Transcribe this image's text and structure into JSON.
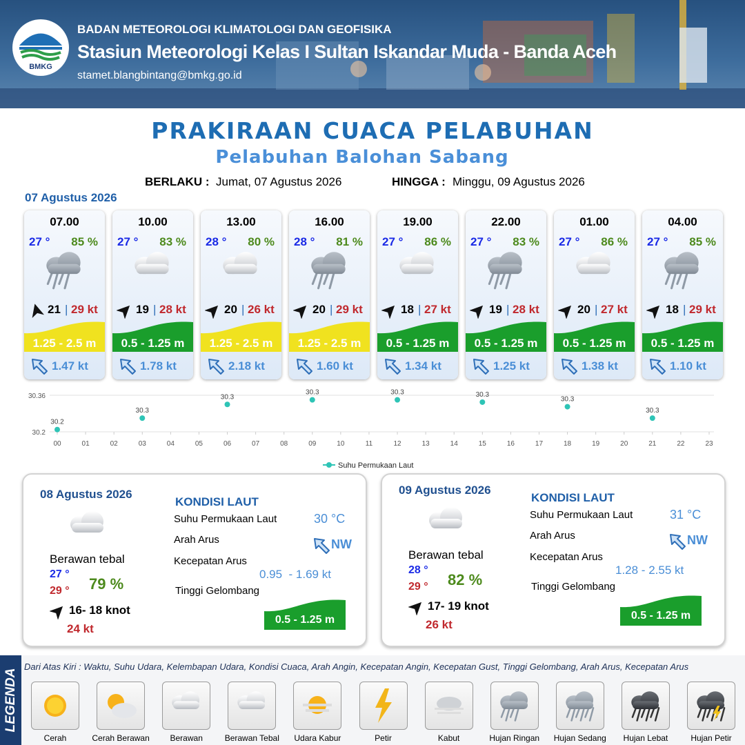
{
  "header": {
    "logo": "BMKG",
    "agency": "BADAN METEOROLOGI KLIMATOLOGI DAN GEOFISIKA",
    "station": "Stasiun Meteorologi Kelas I Sultan Iskandar Muda - Banda Aceh",
    "email": "stamet.blangbintang@bmkg.go.id"
  },
  "title": "PRAKIRAAN CUACA PELABUHAN",
  "subtitle": "Pelabuhan Balohan Sabang",
  "validity": {
    "from_label": "BERLAKU :",
    "from": "Jumat, 07 Agustus 2026",
    "to_label": "HINGGA :",
    "to": "Minggu, 09 Agustus 2026"
  },
  "forecast": {
    "date": "07 Agustus 2026",
    "cards": [
      {
        "time": "07.00",
        "temp": "27 °",
        "humidity": "85 %",
        "wind": "21",
        "gust": "29 kt",
        "wave": "1.25 - 2.5 m",
        "current": "1.47 kt"
      },
      {
        "time": "10.00",
        "temp": "27 °",
        "humidity": "83 %",
        "wind": "19",
        "gust": "28 kt",
        "wave": "0.5 - 1.25 m",
        "current": "1.78 kt"
      },
      {
        "time": "13.00",
        "temp": "28 °",
        "humidity": "80 %",
        "wind": "20",
        "gust": "26 kt",
        "wave": "1.25 - 2.5 m",
        "current": "2.18 kt"
      },
      {
        "time": "16.00",
        "temp": "28 °",
        "humidity": "81 %",
        "wind": "20",
        "gust": "29 kt",
        "wave": "1.25 - 2.5 m",
        "current": "1.60 kt"
      },
      {
        "time": "19.00",
        "temp": "27 °",
        "humidity": "86 %",
        "wind": "18",
        "gust": "27 kt",
        "wave": "0.5 - 1.25 m",
        "current": "1.34 kt"
      },
      {
        "time": "22.00",
        "temp": "27 °",
        "humidity": "83 %",
        "wind": "19",
        "gust": "28 kt",
        "wave": "0.5 - 1.25 m",
        "current": "1.25 kt"
      },
      {
        "time": "01.00",
        "temp": "27 °",
        "humidity": "86 %",
        "wind": "20",
        "gust": "27 kt",
        "wave": "0.5 - 1.25 m",
        "current": "1.38 kt"
      },
      {
        "time": "04.00",
        "temp": "27 °",
        "humidity": "85 %",
        "wind": "18",
        "gust": "29 kt",
        "wave": "0.5 - 1.25 m",
        "current": "1.10 kt"
      }
    ]
  },
  "chart_data": {
    "type": "scatter",
    "x": [
      0,
      3,
      6,
      9,
      12,
      15,
      18,
      21
    ],
    "series": [
      {
        "name": "Suhu Permukaan Laut",
        "color": "#2ec4b6",
        "values": [
          30.21,
          30.26,
          30.32,
          30.34,
          30.34,
          30.33,
          30.31,
          30.26
        ],
        "value_labels": [
          "30.2",
          "30.3",
          "30.3",
          "30.3",
          "30.3",
          "30.3",
          "30.3",
          "30.3"
        ]
      }
    ],
    "xlim": [
      0,
      23
    ],
    "xticks": [
      {
        "value": 0,
        "label": "00"
      },
      {
        "value": 1,
        "label": "01"
      },
      {
        "value": 2,
        "label": "02"
      },
      {
        "value": 3,
        "label": "03"
      },
      {
        "value": 4,
        "label": "04"
      },
      {
        "value": 5,
        "label": "05"
      },
      {
        "value": 6,
        "label": "06"
      },
      {
        "value": 7,
        "label": "07"
      },
      {
        "value": 8,
        "label": "08"
      },
      {
        "value": 9,
        "label": "09"
      },
      10,
      11,
      12,
      13,
      14,
      15,
      16,
      17,
      18,
      19,
      20,
      21,
      22,
      23
    ],
    "ylim": [
      30.2,
      30.36
    ],
    "yticks": [
      30.2,
      30.36
    ],
    "grid": true
  },
  "days": [
    {
      "date": "08 Agustus 2026",
      "condition": "Berawan tebal",
      "temp_min": "27 °",
      "temp_max": "29 °",
      "humidity": "79 %",
      "wind": "16- 18 knot",
      "gust": "24 kt",
      "sea_title": "KONDISI LAUT",
      "sst_label": "Suhu Permukaan Laut",
      "sst": "30 °C",
      "dir_label": "Arah Arus",
      "dir": "NW",
      "speed_label": "Kecepatan Arus",
      "speed": "0.95  - 1.69 kt",
      "wave_label": "Tinggi Gelombang",
      "wave": "0.5 - 1.25 m"
    },
    {
      "date": "09 Agustus 2026",
      "condition": "Berawan tebal",
      "temp_min": "28 °",
      "temp_max": "29 °",
      "humidity": "82 %",
      "wind": "17- 19 knot",
      "gust": "26 kt",
      "sea_title": "KONDISI LAUT",
      "sst_label": "Suhu Permukaan Laut",
      "sst": "31 °C",
      "dir_label": "Arah Arus",
      "dir": "NW",
      "speed_label": "Kecepatan Arus",
      "speed": "1.28 - 2.55 kt",
      "wave_label": "Tinggi Gelombang",
      "wave": "0.5 - 1.25 m"
    }
  ],
  "legend": {
    "title": "LEGENDA",
    "note": "Dari Atas Kiri : Waktu, Suhu Udara, Kelembapan Udara, Kondisi Cuaca, Arah Angin, Kecepatan Angin, Kecepatan Gust, Tinggi Gelombang, Arah Arus, Kecepatan Arus",
    "items": [
      "Cerah",
      "Cerah Berawan",
      "Berawan",
      "Berawan Tebal",
      "Udara Kabur",
      "Petir",
      "Kabut",
      "Hujan Ringan",
      "Hujan Sedang",
      "Hujan Lebat",
      "Hujan Petir"
    ]
  }
}
